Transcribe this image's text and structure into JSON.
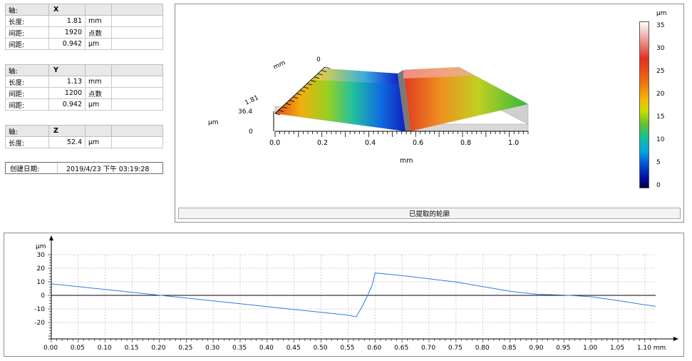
{
  "axis_x": {
    "axis_label": "轴:",
    "axis_name": "X",
    "rows": [
      {
        "label": "长度:",
        "value": "1.81",
        "unit": "mm"
      },
      {
        "label": "间距:",
        "value": "1920",
        "unit": "点数"
      },
      {
        "label": "间距:",
        "value": "0.942",
        "unit": "μm"
      }
    ]
  },
  "axis_y": {
    "axis_label": "轴:",
    "axis_name": "Y",
    "rows": [
      {
        "label": "长度:",
        "value": "1.13",
        "unit": "mm"
      },
      {
        "label": "间距:",
        "value": "1200",
        "unit": "点数"
      },
      {
        "label": "间距:",
        "value": "0.942",
        "unit": "μm"
      }
    ]
  },
  "axis_z": {
    "axis_label": "轴:",
    "axis_name": "Z",
    "rows": [
      {
        "label": "长度:",
        "value": "52.4",
        "unit": "μm"
      }
    ]
  },
  "created": {
    "label": "创建日期:",
    "value": "2019/4/23 下午 03:19:28"
  },
  "view3d": {
    "extract_button": "已提取的轮廓",
    "z_unit": "μm",
    "y_unit": "mm",
    "x_unit": "mm",
    "y_ticks": [
      "0",
      "1.81"
    ],
    "z_ticks": [
      "36.4",
      "0"
    ],
    "x_ticks": [
      "0.0",
      "0.2",
      "0.4",
      "0.6",
      "0.8",
      "1.0"
    ],
    "colorbar": {
      "unit": "μm",
      "ticks": [
        "35",
        "30",
        "25",
        "20",
        "15",
        "10",
        "5",
        "0"
      ]
    }
  },
  "chart_data": {
    "type": "line",
    "ylabel": "μm",
    "xlabel": "mm",
    "xlim": [
      0.0,
      1.12
    ],
    "ylim": [
      -30,
      30
    ],
    "x_ticks": [
      "0.00",
      "0.05",
      "0.10",
      "0.15",
      "0.20",
      "0.25",
      "0.30",
      "0.35",
      "0.40",
      "0.45",
      "0.50",
      "0.55",
      "0.60",
      "0.65",
      "0.70",
      "0.75",
      "0.80",
      "0.85",
      "0.90",
      "0.95",
      "1.00",
      "1.05",
      "1.10 mm"
    ],
    "y_ticks": [
      "30",
      "20",
      "10",
      "0",
      "-10",
      "-20"
    ],
    "grid": true,
    "series": [
      {
        "color": "#2a7fe0",
        "x": [
          0.0,
          0.05,
          0.1,
          0.15,
          0.2,
          0.25,
          0.3,
          0.35,
          0.4,
          0.45,
          0.5,
          0.55,
          0.565,
          0.575,
          0.585,
          0.595,
          0.6,
          0.65,
          0.7,
          0.75,
          0.8,
          0.85,
          0.9,
          0.95,
          1.0,
          1.05,
          1.1,
          1.12
        ],
        "y": [
          8.5,
          6.4,
          4.3,
          2.2,
          0.1,
          -2.0,
          -4.1,
          -6.2,
          -8.3,
          -10.4,
          -12.5,
          -14.6,
          -15.8,
          -9.0,
          -1.0,
          8.0,
          16.5,
          14.6,
          12.2,
          9.8,
          6.4,
          3.0,
          0.8,
          0.2,
          -1.0,
          -3.8,
          -7.0,
          -8.0
        ]
      }
    ]
  }
}
